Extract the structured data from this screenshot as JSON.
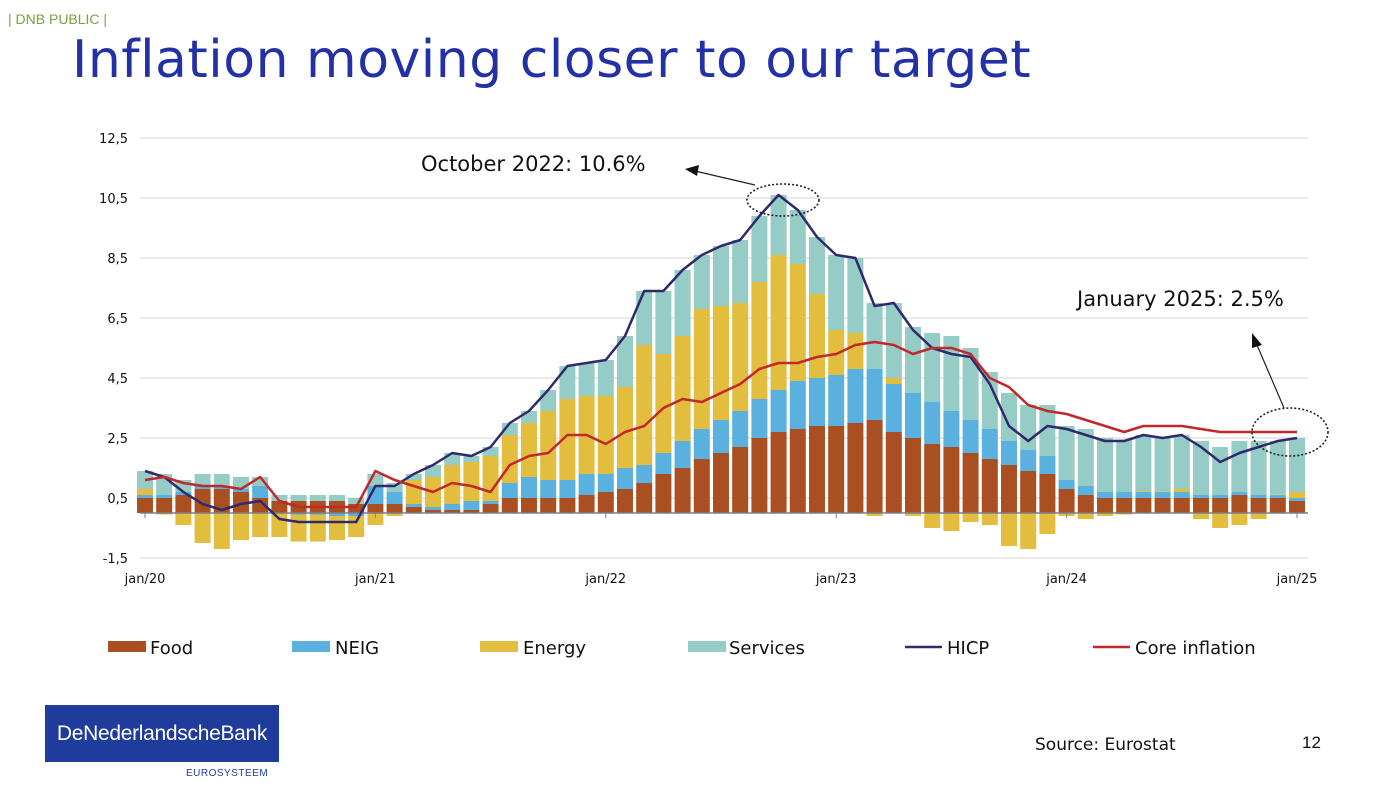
{
  "header": {
    "classification": "| DNB PUBLIC |",
    "title": "Inflation moving closer to our target"
  },
  "footer": {
    "logo_text": "DeNederlandscheBank",
    "logo_sub": "EUROSYSTEEM",
    "source": "Source: Eurostat",
    "page_number": "12"
  },
  "colors": {
    "food": "#a94f22",
    "neig": "#5ab0de",
    "energy": "#e3bd3e",
    "services": "#96ccc6",
    "hicp": "#2e2a6b",
    "core": "#c0282a",
    "title": "#2431a6"
  },
  "chart_data": {
    "type": "bar",
    "stacked": true,
    "title": "",
    "xlabel": "",
    "ylabel": "",
    "ylim": [
      -1.5,
      12.5
    ],
    "yticks": [
      "12,5",
      "10,5",
      "8,5",
      "6,5",
      "4,5",
      "2,5",
      "0,5",
      "-1,5"
    ],
    "ytick_values": [
      12.5,
      10.5,
      8.5,
      6.5,
      4.5,
      2.5,
      0.5,
      -1.5
    ],
    "xticks": [
      "jan/20",
      "jan/21",
      "jan/22",
      "jan/23",
      "jan/24",
      "jan/25"
    ],
    "x_start": "jan/20",
    "x_end": "jan/25",
    "months": 61,
    "grid": true,
    "legend_placement": "bottom",
    "series": [
      {
        "name": "Food",
        "kind": "bar",
        "key": "food",
        "values": [
          0.5,
          0.5,
          0.6,
          0.8,
          0.8,
          0.7,
          0.5,
          0.4,
          0.4,
          0.4,
          0.4,
          0.3,
          0.3,
          0.3,
          0.2,
          0.1,
          0.1,
          0.1,
          0.3,
          0.5,
          0.5,
          0.5,
          0.5,
          0.6,
          0.7,
          0.8,
          1.0,
          1.3,
          1.5,
          1.8,
          2.0,
          2.2,
          2.5,
          2.7,
          2.8,
          2.9,
          2.9,
          3.0,
          3.1,
          2.7,
          2.5,
          2.3,
          2.2,
          2.0,
          1.8,
          1.6,
          1.4,
          1.3,
          0.8,
          0.6,
          0.5,
          0.5,
          0.5,
          0.5,
          0.5,
          0.5,
          0.5,
          0.6,
          0.5,
          0.5,
          0.4
        ]
      },
      {
        "name": "NEIG",
        "kind": "bar",
        "key": "neig",
        "values": [
          0.1,
          0.1,
          0.1,
          0.1,
          0.1,
          0.1,
          0.4,
          0.0,
          -0.05,
          -0.05,
          -0.1,
          -0.1,
          0.6,
          0.4,
          0.1,
          0.1,
          0.2,
          0.3,
          0.1,
          0.5,
          0.7,
          0.6,
          0.6,
          0.7,
          0.6,
          0.7,
          0.6,
          0.7,
          0.9,
          1.0,
          1.1,
          1.2,
          1.3,
          1.4,
          1.6,
          1.6,
          1.7,
          1.8,
          1.7,
          1.6,
          1.5,
          1.4,
          1.2,
          1.1,
          1.0,
          0.8,
          0.7,
          0.6,
          0.3,
          0.3,
          0.2,
          0.2,
          0.2,
          0.2,
          0.2,
          0.1,
          0.1,
          0.1,
          0.1,
          0.1,
          0.1
        ]
      },
      {
        "name": "Energy",
        "kind": "bar",
        "key": "energy",
        "values": [
          0.2,
          -0.05,
          -0.4,
          -1.0,
          -1.2,
          -0.9,
          -0.8,
          -0.8,
          -0.9,
          -0.9,
          -0.8,
          -0.7,
          -0.4,
          -0.1,
          0.8,
          1.0,
          1.3,
          1.3,
          1.5,
          1.6,
          1.8,
          2.3,
          2.7,
          2.6,
          2.6,
          2.7,
          4.0,
          3.3,
          3.5,
          4.0,
          3.8,
          3.6,
          3.9,
          4.5,
          3.9,
          2.8,
          1.5,
          1.2,
          -0.1,
          0.2,
          -0.1,
          -0.5,
          -0.6,
          -0.3,
          -0.4,
          -1.1,
          -1.2,
          -0.7,
          -0.1,
          -0.2,
          -0.1,
          -0.05,
          0.03,
          0.02,
          0.1,
          -0.2,
          -0.5,
          -0.4,
          -0.2,
          0.01,
          0.2
        ]
      },
      {
        "name": "Services",
        "kind": "bar",
        "key": "services",
        "values": [
          0.6,
          0.7,
          0.4,
          0.4,
          0.4,
          0.4,
          0.3,
          0.2,
          0.2,
          0.2,
          0.2,
          0.2,
          0.4,
          0.3,
          0.2,
          0.4,
          0.4,
          0.2,
          0.3,
          0.4,
          0.4,
          0.7,
          1.1,
          1.1,
          1.2,
          1.7,
          1.8,
          2.1,
          2.2,
          1.8,
          2.0,
          2.1,
          2.2,
          2.0,
          1.8,
          1.9,
          2.5,
          2.5,
          2.2,
          2.5,
          2.2,
          2.3,
          2.5,
          2.4,
          1.9,
          1.6,
          1.5,
          1.7,
          1.8,
          1.9,
          1.8,
          1.75,
          1.87,
          1.78,
          1.8,
          1.8,
          1.6,
          1.7,
          1.8,
          1.79,
          1.8
        ]
      },
      {
        "name": "HICP",
        "kind": "line",
        "key": "hicp",
        "values": [
          1.4,
          1.2,
          0.7,
          0.3,
          0.1,
          0.3,
          0.4,
          -0.2,
          -0.3,
          -0.3,
          -0.3,
          -0.3,
          0.9,
          0.9,
          1.3,
          1.6,
          2.0,
          1.9,
          2.2,
          3.0,
          3.4,
          4.1,
          4.9,
          5.0,
          5.1,
          5.9,
          7.4,
          7.4,
          8.1,
          8.6,
          8.9,
          9.1,
          9.9,
          10.6,
          10.1,
          9.2,
          8.6,
          8.5,
          6.9,
          7.0,
          6.1,
          5.5,
          5.3,
          5.2,
          4.3,
          2.9,
          2.4,
          2.9,
          2.8,
          2.6,
          2.4,
          2.4,
          2.6,
          2.5,
          2.6,
          2.2,
          1.7,
          2.0,
          2.2,
          2.4,
          2.5
        ]
      },
      {
        "name": "Core inflation",
        "kind": "line",
        "key": "core",
        "values": [
          1.1,
          1.2,
          1.0,
          0.9,
          0.9,
          0.8,
          1.2,
          0.4,
          0.2,
          0.2,
          0.2,
          0.2,
          1.4,
          1.1,
          0.9,
          0.7,
          1.0,
          0.9,
          0.7,
          1.6,
          1.9,
          2.0,
          2.6,
          2.6,
          2.3,
          2.7,
          2.9,
          3.5,
          3.8,
          3.7,
          4.0,
          4.3,
          4.8,
          5.0,
          5.0,
          5.2,
          5.3,
          5.6,
          5.7,
          5.6,
          5.3,
          5.5,
          5.5,
          5.3,
          4.5,
          4.2,
          3.6,
          3.4,
          3.3,
          3.1,
          2.9,
          2.7,
          2.9,
          2.9,
          2.9,
          2.8,
          2.7,
          2.7,
          2.7,
          2.7,
          2.7
        ]
      }
    ],
    "annotations": [
      {
        "text": "October 2022: 10.6%",
        "month_index": 33,
        "value": 10.6
      },
      {
        "text": "January 2025: 2.5%",
        "month_index": 60,
        "value": 2.5
      }
    ]
  }
}
